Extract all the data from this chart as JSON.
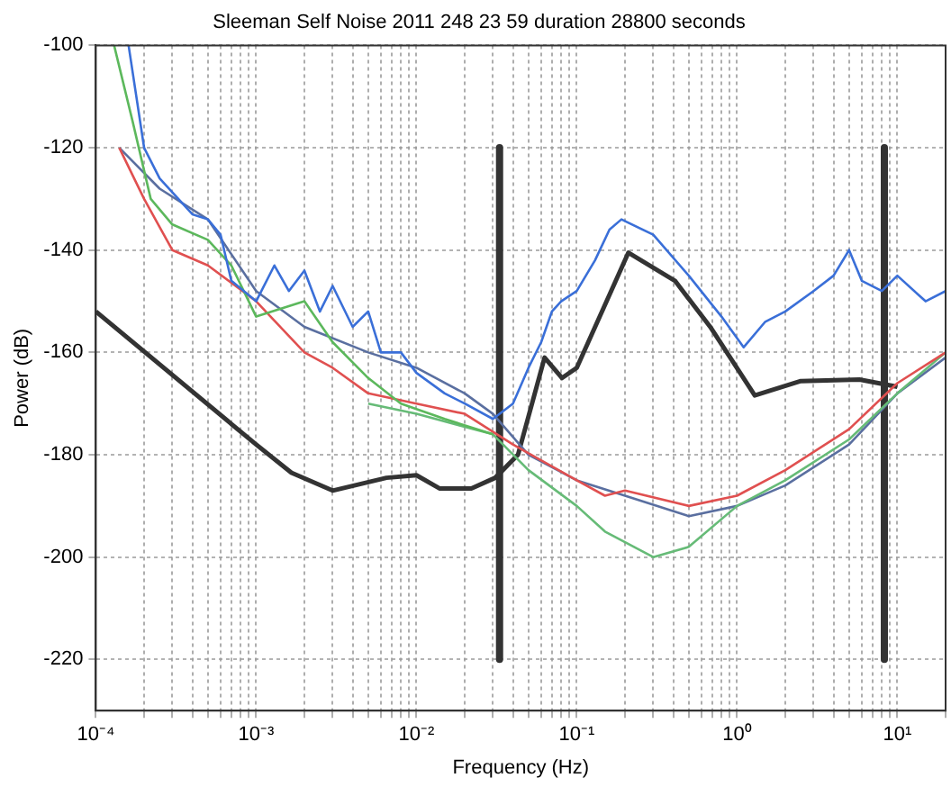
{
  "chart_data": {
    "type": "line",
    "title": "Sleeman Self Noise 2011 248 23 59 duration 28800 seconds",
    "xlabel": "Frequency (Hz)",
    "ylabel": "Power (dB)",
    "log": "x",
    "grid": true,
    "legend": false,
    "marker": "none",
    "xlim": [
      0.0001,
      20
    ],
    "ylim": [
      -230,
      -100
    ],
    "xticks": [
      {
        "value": 0.0001,
        "label": "10⁻⁴"
      },
      {
        "value": 0.0002,
        "label": null
      },
      {
        "value": 0.0003,
        "label": null
      },
      {
        "value": 0.0004,
        "label": null
      },
      {
        "value": 0.0005,
        "label": null
      },
      {
        "value": 0.0006,
        "label": null
      },
      {
        "value": 0.0007,
        "label": null
      },
      {
        "value": 0.0008,
        "label": null
      },
      {
        "value": 0.0009,
        "label": null
      },
      {
        "value": 0.001,
        "label": "10⁻³"
      },
      {
        "value": 0.002,
        "label": null
      },
      {
        "value": 0.003,
        "label": null
      },
      {
        "value": 0.004,
        "label": null
      },
      {
        "value": 0.005,
        "label": null
      },
      {
        "value": 0.006,
        "label": null
      },
      {
        "value": 0.007,
        "label": null
      },
      {
        "value": 0.008,
        "label": null
      },
      {
        "value": 0.009,
        "label": null
      },
      {
        "value": 0.01,
        "label": "10⁻²"
      },
      {
        "value": 0.02,
        "label": null
      },
      {
        "value": 0.03,
        "label": null
      },
      {
        "value": 0.04,
        "label": null
      },
      {
        "value": 0.05,
        "label": null
      },
      {
        "value": 0.06,
        "label": null
      },
      {
        "value": 0.07,
        "label": null
      },
      {
        "value": 0.08,
        "label": null
      },
      {
        "value": 0.09,
        "label": null
      },
      {
        "value": 0.1,
        "label": "10⁻¹"
      },
      {
        "value": 0.2,
        "label": null
      },
      {
        "value": 0.3,
        "label": null
      },
      {
        "value": 0.4,
        "label": null
      },
      {
        "value": 0.5,
        "label": null
      },
      {
        "value": 0.6,
        "label": null
      },
      {
        "value": 0.7,
        "label": null
      },
      {
        "value": 0.8,
        "label": null
      },
      {
        "value": 0.9,
        "label": null
      },
      {
        "value": 1,
        "label": "10⁰"
      },
      {
        "value": 2,
        "label": null
      },
      {
        "value": 3,
        "label": null
      },
      {
        "value": 4,
        "label": null
      },
      {
        "value": 5,
        "label": null
      },
      {
        "value": 6,
        "label": null
      },
      {
        "value": 7,
        "label": null
      },
      {
        "value": 8,
        "label": null
      },
      {
        "value": 9,
        "label": null
      },
      {
        "value": 10,
        "label": "10¹"
      },
      {
        "value": 20,
        "label": null
      }
    ],
    "yticks": [
      -220,
      -200,
      -180,
      -160,
      -140,
      -120,
      -100
    ],
    "series": [
      {
        "color": "#3a6fd8",
        "x": [
          0.00016,
          0.0002,
          0.00025,
          0.0004,
          0.0005,
          0.0006,
          0.0007,
          0.001,
          0.0013,
          0.0016,
          0.002,
          0.0025,
          0.003,
          0.004,
          0.005,
          0.006,
          0.008,
          0.01,
          0.015,
          0.02,
          0.03,
          0.04,
          0.05,
          0.06,
          0.07,
          0.08,
          0.1,
          0.13,
          0.16,
          0.19,
          0.3,
          0.5,
          0.8,
          1.1,
          1.5,
          2,
          3,
          4,
          5,
          6,
          8,
          10,
          15,
          20
        ],
        "values": [
          -100,
          -120,
          -126,
          -133,
          -134,
          -137,
          -146,
          -150,
          -143,
          -148,
          -144,
          -152,
          -147,
          -155,
          -152,
          -160,
          -160,
          -164,
          -168,
          -170,
          -173,
          -170,
          -163,
          -158,
          -152,
          -150,
          -148,
          -142,
          -136,
          -134,
          -137,
          -145,
          -153,
          -159,
          -154,
          -152,
          -148,
          -145,
          -140,
          -146,
          -148,
          -145,
          -150,
          -148
        ]
      },
      {
        "color": "#5cb85c",
        "x": [
          0.00013,
          0.00017,
          0.00022,
          0.0003,
          0.0005,
          0.0007,
          0.001,
          0.002,
          0.003,
          0.005,
          0.008,
          0.015,
          0.03
        ],
        "values": [
          -100,
          -115,
          -130,
          -135,
          -138,
          -143,
          -153,
          -150,
          -158,
          -165,
          -170,
          -173,
          -176
        ]
      },
      {
        "color": "#e05050",
        "x": [
          0.00014,
          0.0002,
          0.0003,
          0.0005,
          0.001,
          0.002,
          0.003,
          0.005,
          0.01,
          0.02,
          0.04,
          0.1,
          0.15,
          0.2,
          0.5,
          1,
          2,
          5,
          10,
          20
        ],
        "values": [
          -120,
          -130,
          -140,
          -143,
          -150,
          -160,
          -163,
          -168,
          -170,
          -172,
          -178,
          -185,
          -188,
          -187,
          -190,
          -188,
          -183,
          -175,
          -166,
          -160
        ]
      },
      {
        "color": "#66bb77",
        "x": [
          0.005,
          0.01,
          0.03,
          0.05,
          0.1,
          0.15,
          0.3,
          0.5,
          1,
          2,
          5,
          10,
          20
        ],
        "values": [
          -170,
          -172,
          -176,
          -183,
          -190,
          -195,
          -200,
          -198,
          -190,
          -185,
          -177,
          -168,
          -160
        ]
      },
      {
        "color": "#5a6fa0",
        "x": [
          0.00014,
          0.00025,
          0.0005,
          0.001,
          0.002,
          0.005,
          0.01,
          0.02,
          0.03,
          0.05,
          0.1,
          0.2,
          0.5,
          1,
          2,
          5,
          10,
          20
        ],
        "values": [
          -120,
          -128,
          -134,
          -148,
          -155,
          -160,
          -163,
          -168,
          -172,
          -180,
          -185,
          -188,
          -192,
          -190,
          -186,
          -178,
          -168,
          -161
        ]
      },
      {
        "color": "#333333",
        "x": [
          0.0001,
          0.001,
          0.00166,
          0.003,
          0.0065,
          0.01,
          0.014,
          0.022,
          0.031,
          0.043,
          0.063,
          0.081,
          0.1,
          0.21,
          0.41,
          0.68,
          1.29,
          2.5,
          5.8,
          10
        ],
        "values": [
          -152,
          -178,
          -183.5,
          -187,
          -184.5,
          -184,
          -186.6,
          -186.6,
          -184.5,
          -180,
          -161,
          -165,
          -163,
          -140.5,
          -146,
          -155,
          -168.4,
          -165.6,
          -165.3,
          -166.7
        ]
      },
      {
        "color": "#333333",
        "x": [
          0.033,
          0.033
        ],
        "values": [
          -120,
          -220
        ]
      },
      {
        "color": "#333333",
        "x": [
          8.3,
          8.3
        ],
        "values": [
          -120,
          -220
        ]
      }
    ]
  }
}
